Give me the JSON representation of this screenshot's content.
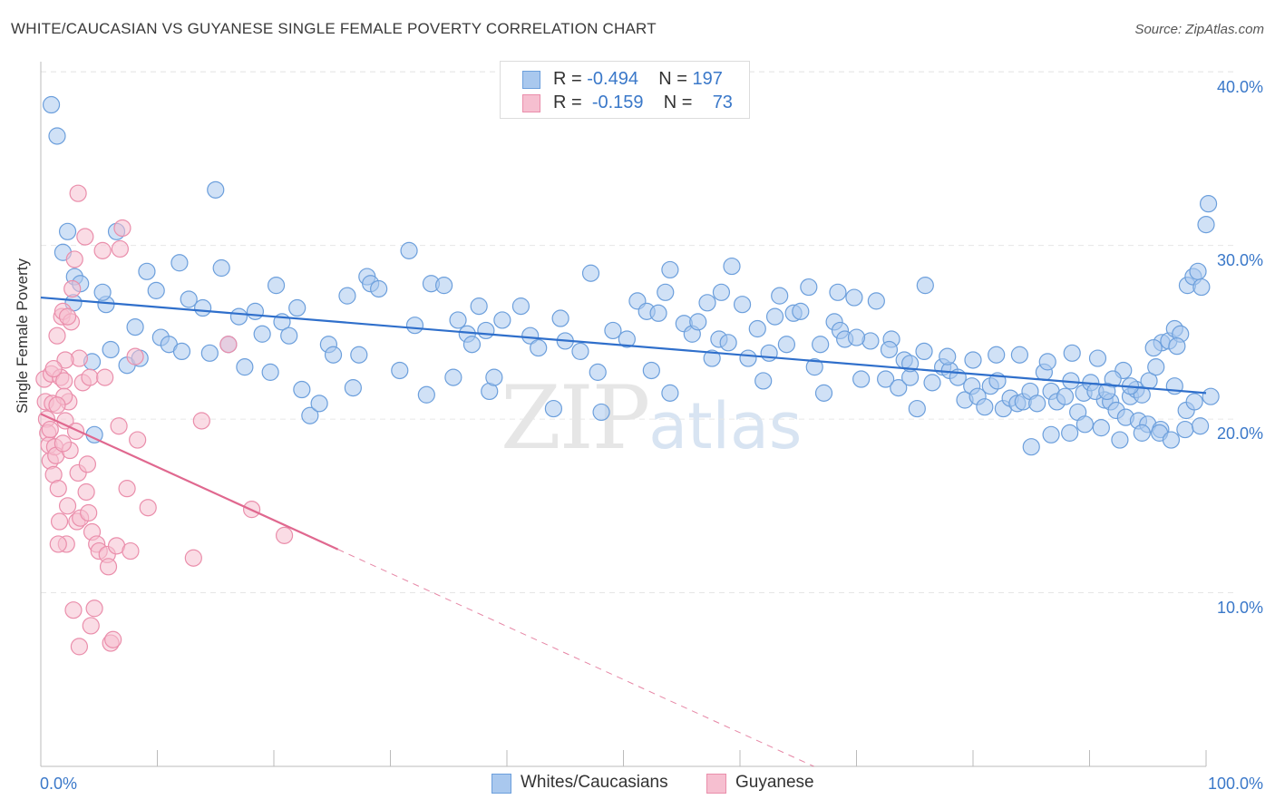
{
  "title": "WHITE/CAUCASIAN VS GUYANESE SINGLE FEMALE POVERTY CORRELATION CHART",
  "source": "Source: ZipAtlas.com",
  "watermark": {
    "zip": "ZIP",
    "atlas": "atlas"
  },
  "legend_top": [
    {
      "r_label": "R =",
      "r_value": "-0.494",
      "n_label": "N =",
      "n_value": "197"
    },
    {
      "r_label": "R =",
      "r_value": "-0.159",
      "n_label": "N =",
      "n_value": "73"
    }
  ],
  "colors": {
    "blue_fill": "#a9c8ee",
    "blue_stroke": "#6c9fdc",
    "blue_line": "#2f6fcb",
    "pink_fill": "#f6bfd0",
    "pink_stroke": "#ea8eab",
    "pink_line": "#e0688f",
    "grid": "#e6e6e6",
    "tick_text": "#3a78c9"
  },
  "chart_data": {
    "type": "scatter",
    "title": "WHITE/CAUCASIAN VS GUYANESE SINGLE FEMALE POVERTY CORRELATION CHART",
    "xlabel": "",
    "ylabel": "Single Female Poverty",
    "xlim": [
      0,
      100
    ],
    "ylim": [
      0,
      41
    ],
    "x_tick_labels": [
      "0.0%",
      "100.0%"
    ],
    "y_ticks": [
      10,
      20,
      30,
      40
    ],
    "y_tick_labels": [
      "10.0%",
      "20.0%",
      "30.0%",
      "40.0%"
    ],
    "grid": true,
    "legend_position": "top-center",
    "series": [
      {
        "name": "Whites/Caucasians",
        "r": -0.494,
        "n": 197,
        "trend": {
          "x": [
            0,
            100
          ],
          "y": [
            27.0,
            21.5
          ],
          "solid_to": 100
        },
        "points": [
          [
            0.9,
            38.1
          ],
          [
            1.4,
            36.3
          ],
          [
            2.3,
            30.8
          ],
          [
            1.9,
            29.6
          ],
          [
            2.9,
            28.2
          ],
          [
            2.8,
            26.7
          ],
          [
            3.4,
            27.8
          ],
          [
            4.4,
            23.3
          ],
          [
            4.6,
            19.1
          ],
          [
            5.6,
            26.6
          ],
          [
            6.0,
            24.0
          ],
          [
            5.3,
            27.3
          ],
          [
            6.5,
            30.8
          ],
          [
            7.4,
            23.1
          ],
          [
            8.5,
            23.5
          ],
          [
            8.1,
            25.3
          ],
          [
            9.1,
            28.5
          ],
          [
            9.9,
            27.4
          ],
          [
            10.3,
            24.7
          ],
          [
            11.0,
            24.3
          ],
          [
            11.9,
            29.0
          ],
          [
            12.1,
            23.9
          ],
          [
            12.7,
            26.9
          ],
          [
            13.9,
            26.4
          ],
          [
            14.5,
            23.8
          ],
          [
            15.0,
            33.2
          ],
          [
            15.5,
            28.7
          ],
          [
            16.1,
            24.3
          ],
          [
            17.0,
            25.9
          ],
          [
            17.5,
            23.0
          ],
          [
            18.4,
            26.2
          ],
          [
            19.0,
            24.9
          ],
          [
            19.7,
            22.7
          ],
          [
            20.2,
            27.7
          ],
          [
            20.7,
            25.6
          ],
          [
            21.3,
            24.8
          ],
          [
            22.0,
            26.4
          ],
          [
            22.4,
            21.7
          ],
          [
            23.1,
            20.2
          ],
          [
            23.9,
            20.9
          ],
          [
            24.7,
            24.3
          ],
          [
            25.1,
            23.7
          ],
          [
            26.3,
            27.1
          ],
          [
            26.8,
            21.8
          ],
          [
            27.3,
            23.7
          ],
          [
            28.0,
            28.2
          ],
          [
            28.3,
            27.8
          ],
          [
            29.0,
            27.5
          ],
          [
            30.8,
            22.8
          ],
          [
            31.6,
            29.7
          ],
          [
            32.1,
            25.4
          ],
          [
            33.1,
            21.4
          ],
          [
            33.5,
            27.8
          ],
          [
            34.6,
            27.7
          ],
          [
            35.4,
            22.4
          ],
          [
            35.8,
            25.7
          ],
          [
            36.6,
            24.9
          ],
          [
            37.0,
            24.3
          ],
          [
            37.6,
            26.5
          ],
          [
            38.2,
            25.1
          ],
          [
            38.5,
            21.6
          ],
          [
            38.9,
            22.4
          ],
          [
            39.6,
            25.7
          ],
          [
            41.2,
            26.5
          ],
          [
            42.0,
            24.8
          ],
          [
            42.7,
            24.1
          ],
          [
            44.0,
            20.6
          ],
          [
            44.6,
            25.8
          ],
          [
            45.0,
            24.5
          ],
          [
            46.3,
            23.9
          ],
          [
            47.2,
            28.4
          ],
          [
            47.8,
            22.7
          ],
          [
            48.1,
            20.4
          ],
          [
            49.1,
            25.1
          ],
          [
            50.3,
            24.6
          ],
          [
            51.2,
            26.8
          ],
          [
            52.0,
            26.2
          ],
          [
            52.4,
            22.8
          ],
          [
            53.0,
            26.1
          ],
          [
            53.6,
            27.3
          ],
          [
            54.0,
            21.5
          ],
          [
            55.2,
            25.5
          ],
          [
            55.9,
            24.9
          ],
          [
            56.4,
            25.6
          ],
          [
            57.2,
            26.7
          ],
          [
            57.6,
            23.5
          ],
          [
            58.2,
            24.6
          ],
          [
            59.0,
            24.4
          ],
          [
            59.3,
            28.8
          ],
          [
            60.2,
            26.6
          ],
          [
            60.7,
            23.5
          ],
          [
            61.5,
            25.2
          ],
          [
            62.0,
            22.2
          ],
          [
            62.5,
            23.8
          ],
          [
            63.4,
            27.1
          ],
          [
            64.0,
            24.3
          ],
          [
            64.6,
            26.1
          ],
          [
            65.2,
            26.2
          ],
          [
            66.4,
            23.0
          ],
          [
            66.9,
            24.3
          ],
          [
            67.2,
            21.5
          ],
          [
            68.1,
            25.6
          ],
          [
            68.6,
            25.1
          ],
          [
            69.0,
            24.6
          ],
          [
            69.8,
            27.0
          ],
          [
            70.4,
            22.3
          ],
          [
            71.2,
            24.5
          ],
          [
            71.7,
            26.8
          ],
          [
            72.5,
            22.3
          ],
          [
            73.0,
            24.6
          ],
          [
            73.6,
            21.8
          ],
          [
            74.1,
            23.4
          ],
          [
            74.6,
            22.4
          ],
          [
            75.2,
            20.6
          ],
          [
            75.8,
            23.9
          ],
          [
            76.5,
            22.1
          ],
          [
            77.4,
            23.0
          ],
          [
            78.0,
            22.8
          ],
          [
            78.7,
            22.4
          ],
          [
            79.3,
            21.1
          ],
          [
            79.9,
            21.9
          ],
          [
            80.4,
            21.3
          ],
          [
            81.0,
            20.7
          ],
          [
            81.5,
            21.9
          ],
          [
            82.1,
            22.2
          ],
          [
            82.6,
            20.6
          ],
          [
            83.2,
            21.2
          ],
          [
            83.8,
            20.9
          ],
          [
            84.3,
            21.0
          ],
          [
            84.9,
            21.6
          ],
          [
            85.5,
            20.9
          ],
          [
            86.1,
            22.7
          ],
          [
            86.7,
            21.6
          ],
          [
            87.2,
            21.0
          ],
          [
            87.9,
            21.3
          ],
          [
            88.4,
            22.2
          ],
          [
            89.0,
            20.4
          ],
          [
            89.5,
            21.5
          ],
          [
            90.1,
            22.1
          ],
          [
            90.7,
            23.5
          ],
          [
            91.3,
            21.1
          ],
          [
            91.8,
            21.0
          ],
          [
            92.3,
            20.5
          ],
          [
            92.9,
            22.8
          ],
          [
            93.5,
            21.3
          ],
          [
            94.0,
            21.7
          ],
          [
            94.5,
            21.4
          ],
          [
            95.1,
            22.2
          ],
          [
            95.7,
            23.0
          ],
          [
            96.2,
            24.4
          ],
          [
            96.8,
            24.5
          ],
          [
            97.3,
            25.2
          ],
          [
            97.8,
            24.9
          ],
          [
            98.4,
            27.7
          ],
          [
            98.9,
            28.2
          ],
          [
            99.3,
            28.5
          ],
          [
            99.6,
            27.6
          ],
          [
            100.0,
            31.2
          ],
          [
            100.2,
            32.4
          ],
          [
            54.0,
            28.6
          ],
          [
            58.4,
            27.3
          ],
          [
            63.0,
            25.9
          ],
          [
            65.9,
            27.6
          ],
          [
            68.4,
            27.3
          ],
          [
            70.0,
            24.7
          ],
          [
            72.8,
            24.0
          ],
          [
            74.6,
            23.2
          ],
          [
            75.9,
            27.7
          ],
          [
            77.8,
            23.6
          ],
          [
            80.0,
            23.4
          ],
          [
            82.0,
            23.7
          ],
          [
            84.0,
            23.7
          ],
          [
            86.4,
            23.3
          ],
          [
            88.5,
            23.8
          ],
          [
            90.5,
            21.6
          ],
          [
            92.0,
            22.3
          ],
          [
            93.1,
            20.1
          ],
          [
            94.2,
            19.9
          ],
          [
            95.0,
            19.7
          ],
          [
            96.1,
            19.4
          ],
          [
            97.3,
            21.9
          ],
          [
            98.3,
            20.5
          ],
          [
            99.0,
            21.0
          ],
          [
            85.0,
            18.4
          ],
          [
            86.7,
            19.1
          ],
          [
            88.3,
            19.2
          ],
          [
            89.6,
            19.7
          ],
          [
            91.0,
            19.5
          ],
          [
            92.6,
            18.8
          ],
          [
            94.5,
            19.2
          ],
          [
            96.0,
            19.2
          ],
          [
            97.0,
            18.8
          ],
          [
            98.2,
            19.4
          ],
          [
            99.5,
            19.6
          ],
          [
            100.4,
            21.3
          ],
          [
            97.5,
            24.2
          ],
          [
            95.5,
            24.1
          ],
          [
            93.5,
            21.9
          ],
          [
            91.5,
            21.6
          ]
        ]
      },
      {
        "name": "Guyanese",
        "r": -0.159,
        "n": 73,
        "trend": {
          "x": [
            0,
            100
          ],
          "y": [
            20.3,
            -10.3
          ],
          "solid_to": 25.5
        },
        "points": [
          [
            0.3,
            22.3
          ],
          [
            0.4,
            21.0
          ],
          [
            0.5,
            20.0
          ],
          [
            0.6,
            19.2
          ],
          [
            0.7,
            18.5
          ],
          [
            0.8,
            17.6
          ],
          [
            0.9,
            22.6
          ],
          [
            1.0,
            20.9
          ],
          [
            1.1,
            16.8
          ],
          [
            1.2,
            18.4
          ],
          [
            1.3,
            17.9
          ],
          [
            1.4,
            24.8
          ],
          [
            1.5,
            16.0
          ],
          [
            1.6,
            14.1
          ],
          [
            1.7,
            22.4
          ],
          [
            1.8,
            25.9
          ],
          [
            1.9,
            26.2
          ],
          [
            2.0,
            22.2
          ],
          [
            2.1,
            19.9
          ],
          [
            2.2,
            12.8
          ],
          [
            2.3,
            15.0
          ],
          [
            2.4,
            21.0
          ],
          [
            2.5,
            18.2
          ],
          [
            2.6,
            25.6
          ],
          [
            2.7,
            27.5
          ],
          [
            2.8,
            9.0
          ],
          [
            2.9,
            29.2
          ],
          [
            3.0,
            19.3
          ],
          [
            3.1,
            14.1
          ],
          [
            3.2,
            16.9
          ],
          [
            3.3,
            23.5
          ],
          [
            3.4,
            14.3
          ],
          [
            3.6,
            22.1
          ],
          [
            3.8,
            30.5
          ],
          [
            3.9,
            15.8
          ],
          [
            4.0,
            17.4
          ],
          [
            4.1,
            14.6
          ],
          [
            4.2,
            22.4
          ],
          [
            4.4,
            13.5
          ],
          [
            4.6,
            9.1
          ],
          [
            4.8,
            12.8
          ],
          [
            5.0,
            12.4
          ],
          [
            5.3,
            29.7
          ],
          [
            5.5,
            22.4
          ],
          [
            5.7,
            12.2
          ],
          [
            5.8,
            11.5
          ],
          [
            6.0,
            7.1
          ],
          [
            6.2,
            7.3
          ],
          [
            6.5,
            12.7
          ],
          [
            6.7,
            19.6
          ],
          [
            6.8,
            29.8
          ],
          [
            7.0,
            31.0
          ],
          [
            7.4,
            16.0
          ],
          [
            7.7,
            12.4
          ],
          [
            8.1,
            23.6
          ],
          [
            8.3,
            18.8
          ],
          [
            9.2,
            14.9
          ],
          [
            13.1,
            12.0
          ],
          [
            13.8,
            19.9
          ],
          [
            16.1,
            24.3
          ],
          [
            18.1,
            14.8
          ],
          [
            20.9,
            13.3
          ],
          [
            2.0,
            21.3
          ],
          [
            3.2,
            33.0
          ],
          [
            4.3,
            8.1
          ],
          [
            3.3,
            6.9
          ],
          [
            1.5,
            12.8
          ],
          [
            2.3,
            25.9
          ],
          [
            1.4,
            20.8
          ],
          [
            2.1,
            23.4
          ],
          [
            0.8,
            19.4
          ],
          [
            1.1,
            22.9
          ],
          [
            1.9,
            18.6
          ]
        ]
      }
    ]
  },
  "bottom_legend": [
    {
      "label": "Whites/Caucasians"
    },
    {
      "label": "Guyanese"
    }
  ]
}
